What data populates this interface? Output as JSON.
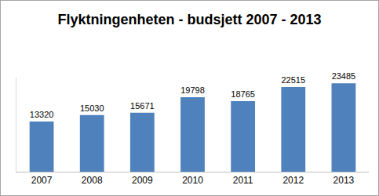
{
  "chart_data": {
    "type": "bar",
    "title": "Flyktningenheten - budsjett 2007 - 2013",
    "categories": [
      "2007",
      "2008",
      "2009",
      "2010",
      "2011",
      "2012",
      "2013"
    ],
    "values": [
      13320,
      15030,
      15671,
      19798,
      18765,
      22515,
      23485
    ],
    "color": "#4f81bd",
    "ylim": [
      0,
      25000
    ],
    "grid": false,
    "data_labels": true,
    "tick_labels": "x"
  }
}
